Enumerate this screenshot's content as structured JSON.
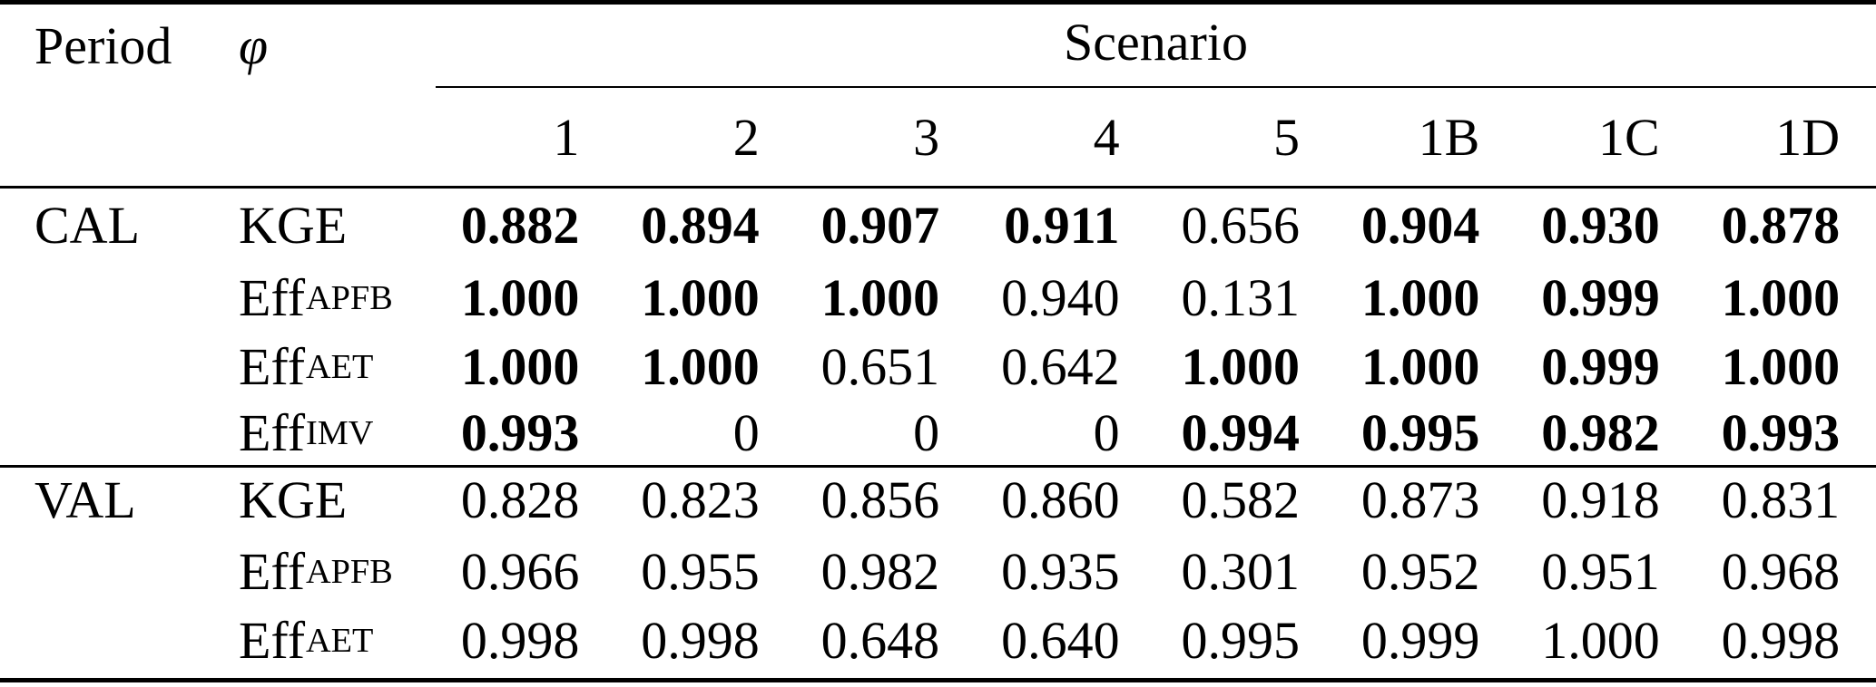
{
  "header": {
    "period_label": "Period",
    "phi_label": "φ",
    "scenario_label": "Scenario",
    "scenario_columns": [
      "1",
      "2",
      "3",
      "4",
      "5",
      "1B",
      "1C",
      "1D"
    ]
  },
  "body": {
    "sections": [
      {
        "period": "CAL",
        "rows": [
          {
            "metric": "KGE",
            "subscript": "",
            "values": [
              "0.882",
              "0.894",
              "0.907",
              "0.911",
              "0.656",
              "0.904",
              "0.930",
              "0.878"
            ],
            "bold": [
              true,
              true,
              true,
              true,
              false,
              true,
              true,
              true
            ]
          },
          {
            "metric": "Eff",
            "subscript": "APFB",
            "values": [
              "1.000",
              "1.000",
              "1.000",
              "0.940",
              "0.131",
              "1.000",
              "0.999",
              "1.000"
            ],
            "bold": [
              true,
              true,
              true,
              false,
              false,
              true,
              true,
              true
            ]
          },
          {
            "metric": "Eff",
            "subscript": "AET",
            "values": [
              "1.000",
              "1.000",
              "0.651",
              "0.642",
              "1.000",
              "1.000",
              "0.999",
              "1.000"
            ],
            "bold": [
              true,
              true,
              false,
              false,
              true,
              true,
              true,
              true
            ]
          },
          {
            "metric": "Eff",
            "subscript": "IMV",
            "values": [
              "0.993",
              "0",
              "0",
              "0",
              "0.994",
              "0.995",
              "0.982",
              "0.993"
            ],
            "bold": [
              true,
              false,
              false,
              false,
              true,
              true,
              true,
              true
            ]
          }
        ]
      },
      {
        "period": "VAL",
        "rows": [
          {
            "metric": "KGE",
            "subscript": "",
            "values": [
              "0.828",
              "0.823",
              "0.856",
              "0.860",
              "0.582",
              "0.873",
              "0.918",
              "0.831"
            ],
            "bold": [
              false,
              false,
              false,
              false,
              false,
              false,
              false,
              false
            ]
          },
          {
            "metric": "Eff",
            "subscript": "APFB",
            "values": [
              "0.966",
              "0.955",
              "0.982",
              "0.935",
              "0.301",
              "0.952",
              "0.951",
              "0.968"
            ],
            "bold": [
              false,
              false,
              false,
              false,
              false,
              false,
              false,
              false
            ]
          },
          {
            "metric": "Eff",
            "subscript": "AET",
            "values": [
              "0.998",
              "0.998",
              "0.648",
              "0.640",
              "0.995",
              "0.999",
              "1.000",
              "0.998"
            ],
            "bold": [
              false,
              false,
              false,
              false,
              false,
              false,
              false,
              false
            ]
          }
        ]
      }
    ]
  },
  "colors": {
    "text": "#000000",
    "background": "#ffffff",
    "rule": "#000000"
  }
}
